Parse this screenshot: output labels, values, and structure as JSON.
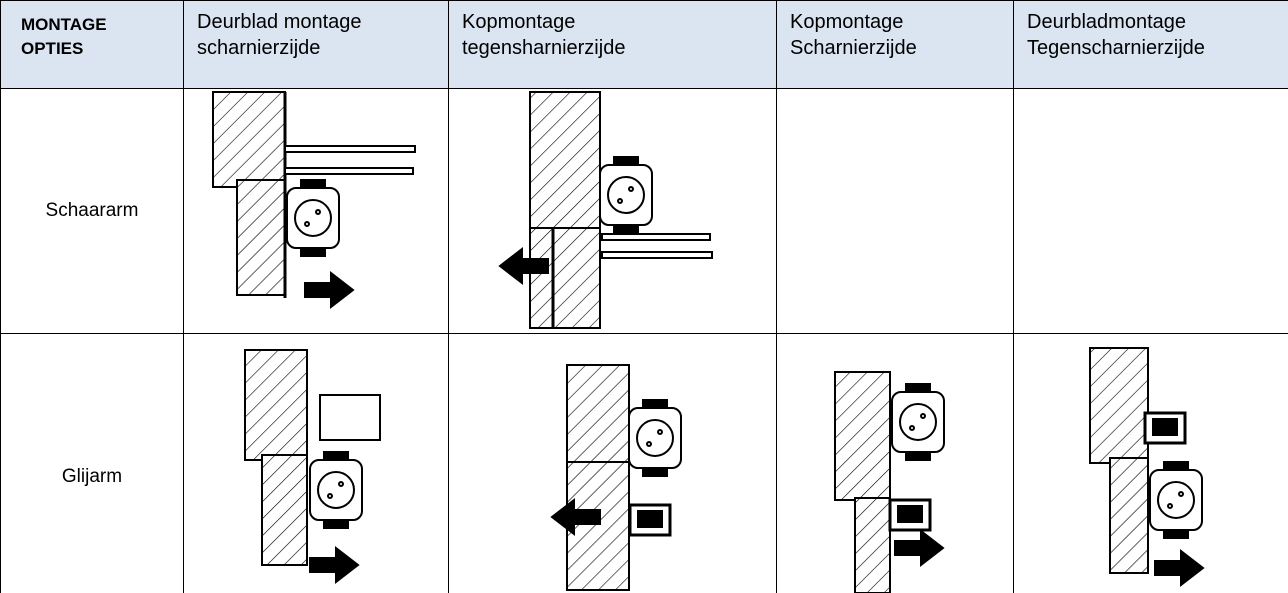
{
  "table": {
    "header": [
      [
        "MONTAGE",
        "OPTIES"
      ],
      [
        "Deurblad montage",
        "scharnierzijde"
      ],
      [
        "Kopmontage",
        "tegensharnierzijde"
      ],
      [
        "Kopmontage",
        "Scharnierzijde"
      ],
      [
        "Deurbladmontage",
        "Tegenscharnierzijde"
      ]
    ],
    "rows": [
      {
        "label": "Schaararm"
      },
      {
        "label": "Glijarm"
      }
    ]
  }
}
